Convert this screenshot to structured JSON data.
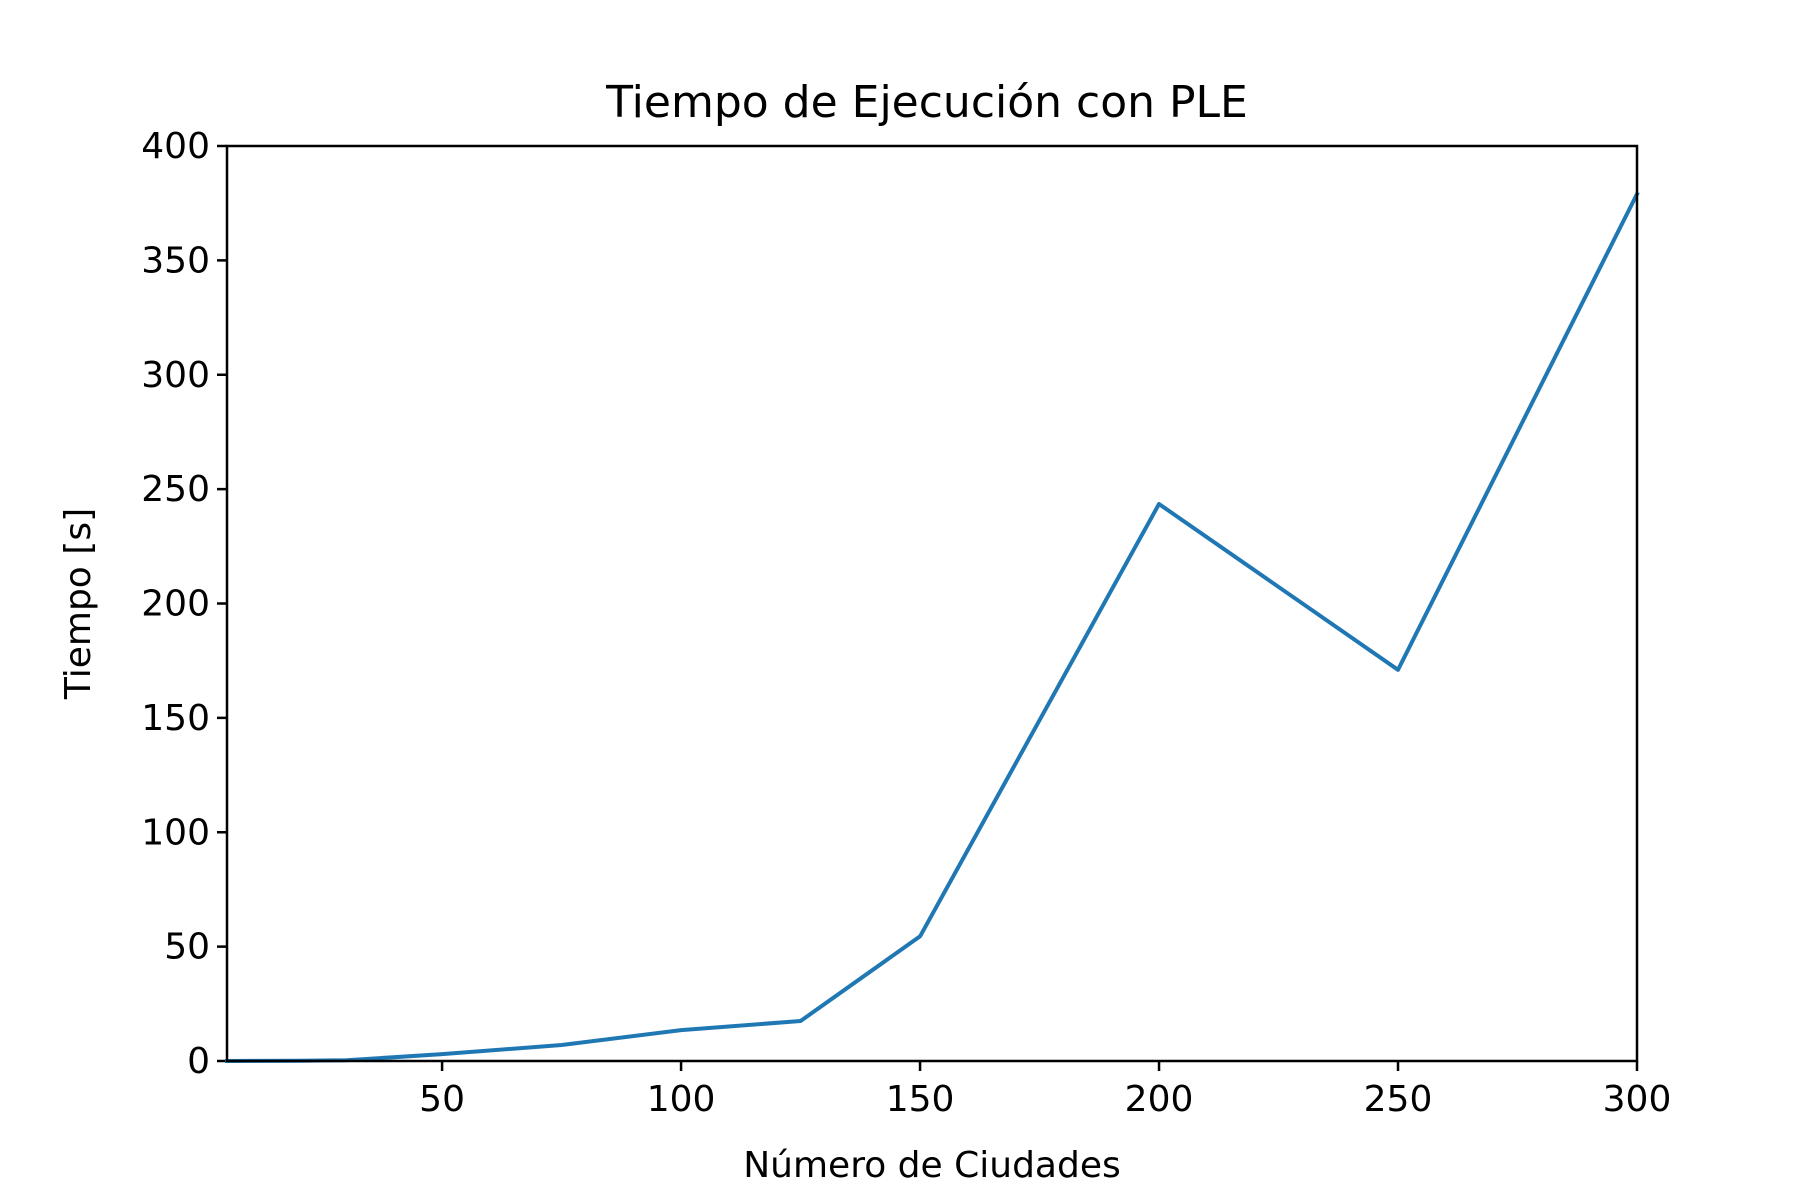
{
  "chart_data": {
    "type": "line",
    "title": "Tiempo de Ejecución con PLE",
    "xlabel": "Número de Ciudades",
    "ylabel": "Tiempo [s]",
    "xlim": [
      5,
      300
    ],
    "ylim": [
      0,
      400
    ],
    "xticks": [
      50,
      100,
      150,
      200,
      250,
      300
    ],
    "yticks": [
      0,
      50,
      100,
      150,
      200,
      250,
      300,
      350,
      400
    ],
    "grid": false,
    "series": [
      {
        "color": "#1f77b4",
        "x": [
          5,
          10,
          20,
          30,
          50,
          75,
          100,
          125,
          150,
          200,
          250,
          300
        ],
        "y": [
          0.0,
          0.05,
          0.1,
          0.3,
          3.0,
          7.0,
          13.5,
          17.5,
          54.5,
          243.5,
          171.0,
          379.0
        ]
      }
    ]
  }
}
